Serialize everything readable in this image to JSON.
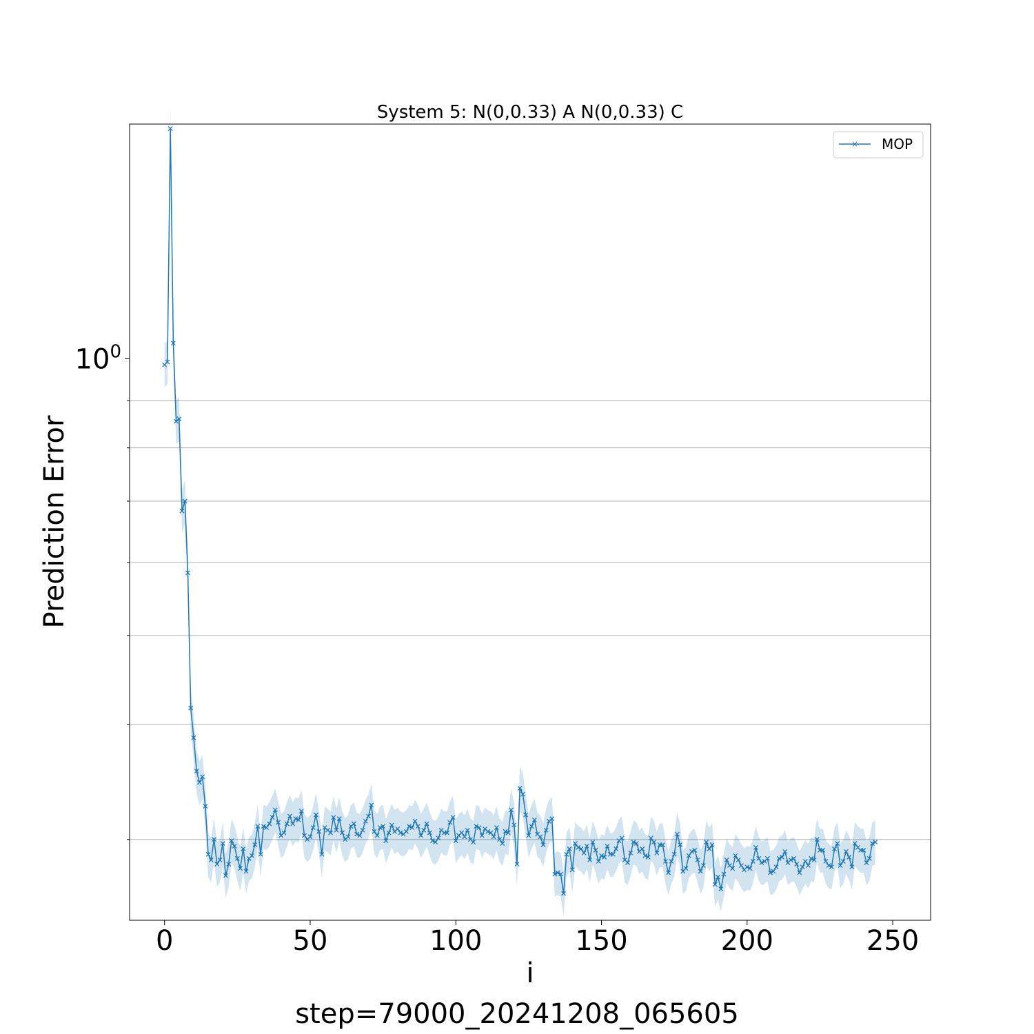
{
  "chart_data": {
    "type": "line",
    "title": "System 5: N(0,0.33) A N(0,0.33) C",
    "xlabel": "i",
    "ylabel": "Prediction Error",
    "caption": "step=79000_20241208_065605",
    "xlim": [
      -12,
      263
    ],
    "ylim": [
      0.245,
      1.8
    ],
    "yscale": "log",
    "x_ticks": [
      0,
      50,
      100,
      150,
      200,
      250
    ],
    "x_tick_labels": [
      "0",
      "50",
      "100",
      "150",
      "200",
      "250"
    ],
    "y_ticks": [
      1.0
    ],
    "y_tick_base": "10",
    "y_tick_exponent": "0",
    "y_minor_ticks": [
      0.3,
      0.4,
      0.5,
      0.6,
      0.7,
      0.8,
      0.9
    ],
    "grid": "horizontal",
    "legend": {
      "placement": "top-right",
      "entries": [
        "MOP"
      ]
    },
    "colors": {
      "line": "#1f77b4",
      "band": "#1f77b4"
    },
    "band_relative_halfwidth": 0.055,
    "series": [
      {
        "name": "MOP",
        "x_start": 0,
        "x_step": 1,
        "values": [
          0.985,
          0.992,
          1.78,
          1.04,
          0.855,
          0.86,
          0.683,
          0.7,
          0.585,
          0.417,
          0.387,
          0.356,
          0.346,
          0.351,
          0.326,
          0.289,
          0.285,
          0.3,
          0.282,
          0.285,
          0.297,
          0.274,
          0.282,
          0.299,
          0.295,
          0.286,
          0.279,
          0.293,
          0.277,
          0.286,
          0.288,
          0.296,
          0.31,
          0.289,
          0.31,
          0.309,
          0.312,
          0.317,
          0.323,
          0.313,
          0.303,
          0.305,
          0.312,
          0.318,
          0.312,
          0.316,
          0.315,
          0.322,
          0.303,
          0.3,
          0.302,
          0.309,
          0.319,
          0.306,
          0.289,
          0.309,
          0.307,
          0.305,
          0.317,
          0.307,
          0.316,
          0.305,
          0.3,
          0.302,
          0.31,
          0.312,
          0.304,
          0.303,
          0.307,
          0.314,
          0.318,
          0.327,
          0.306,
          0.303,
          0.309,
          0.31,
          0.299,
          0.305,
          0.311,
          0.306,
          0.308,
          0.305,
          0.304,
          0.306,
          0.31,
          0.309,
          0.314,
          0.31,
          0.303,
          0.307,
          0.312,
          0.305,
          0.299,
          0.298,
          0.301,
          0.307,
          0.305,
          0.305,
          0.313,
          0.317,
          0.299,
          0.303,
          0.305,
          0.302,
          0.307,
          0.3,
          0.298,
          0.31,
          0.309,
          0.303,
          0.308,
          0.306,
          0.305,
          0.302,
          0.309,
          0.3,
          0.297,
          0.306,
          0.305,
          0.323,
          0.311,
          0.282,
          0.341,
          0.336,
          0.319,
          0.303,
          0.31,
          0.315,
          0.304,
          0.302,
          0.296,
          0.307,
          0.314,
          0.316,
          0.275,
          0.276,
          0.275,
          0.262,
          0.289,
          0.293,
          0.278,
          0.297,
          0.294,
          0.293,
          0.29,
          0.295,
          0.285,
          0.298,
          0.292,
          0.284,
          0.288,
          0.287,
          0.295,
          0.289,
          0.289,
          0.293,
          0.299,
          0.301,
          0.285,
          0.283,
          0.29,
          0.298,
          0.297,
          0.291,
          0.293,
          0.288,
          0.287,
          0.301,
          0.298,
          0.29,
          0.296,
          0.296,
          0.284,
          0.276,
          0.284,
          0.289,
          0.304,
          0.296,
          0.277,
          0.279,
          0.288,
          0.291,
          0.292,
          0.285,
          0.277,
          0.281,
          0.298,
          0.293,
          0.296,
          0.268,
          0.273,
          0.265,
          0.275,
          0.285,
          0.281,
          0.279,
          0.288,
          0.285,
          0.281,
          0.278,
          0.28,
          0.279,
          0.284,
          0.294,
          0.286,
          0.283,
          0.284,
          0.286,
          0.276,
          0.277,
          0.28,
          0.286,
          0.287,
          0.291,
          0.283,
          0.285,
          0.286,
          0.282,
          0.276,
          0.28,
          0.284,
          0.281,
          0.286,
          0.285,
          0.3,
          0.292,
          0.292,
          0.284,
          0.281,
          0.28,
          0.293,
          0.297,
          0.281,
          0.284,
          0.291,
          0.287,
          0.28,
          0.297,
          0.294,
          0.292,
          0.292,
          0.283,
          0.286,
          0.297,
          0.298
        ]
      }
    ]
  }
}
